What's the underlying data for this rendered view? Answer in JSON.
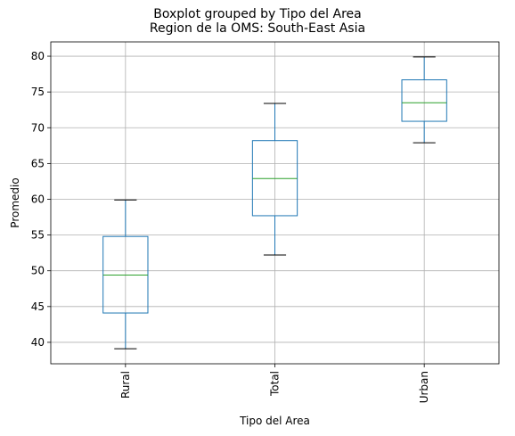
{
  "chart_data": {
    "type": "box",
    "suptitle": "Boxplot grouped by Tipo del Area",
    "title": "Region de la OMS: South-East Asia",
    "xlabel": "Tipo del Area",
    "ylabel": "Promedio",
    "ylim": [
      37,
      82
    ],
    "yticks": [
      40,
      45,
      50,
      55,
      60,
      65,
      70,
      75,
      80
    ],
    "grid": true,
    "x_tick_rotation": "vertical",
    "colors": {
      "box": "#1f77b4",
      "median": "#2ca02c",
      "whisker_cap": "#000000",
      "grid": "#b0b0b0"
    },
    "categories": [
      "Rural",
      "Total",
      "Urban"
    ],
    "boxes": [
      {
        "category": "Rural",
        "whislo": 39.1,
        "q1": 44.1,
        "med": 49.4,
        "q3": 54.8,
        "whishi": 59.9
      },
      {
        "category": "Total",
        "whislo": 52.2,
        "q1": 57.7,
        "med": 62.9,
        "q3": 68.2,
        "whishi": 73.4
      },
      {
        "category": "Urban",
        "whislo": 67.9,
        "q1": 70.9,
        "med": 73.5,
        "q3": 76.7,
        "whishi": 79.9
      }
    ]
  }
}
